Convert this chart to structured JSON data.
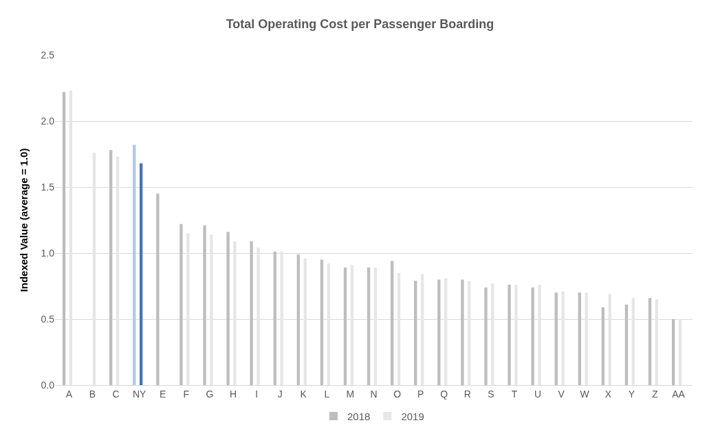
{
  "chart_data": {
    "type": "bar",
    "title": "Total Operating Cost per Passenger Boarding",
    "ylabel": "Indexed Value (average = 1.0)",
    "categories": [
      "A",
      "B",
      "C",
      "NY",
      "E",
      "F",
      "G",
      "H",
      "I",
      "J",
      "K",
      "L",
      "M",
      "N",
      "O",
      "P",
      "Q",
      "R",
      "S",
      "T",
      "U",
      "V",
      "W",
      "X",
      "Y",
      "Z",
      "AA"
    ],
    "series": [
      {
        "name": "2018",
        "color": "#bdbdbd",
        "colors": [
          "#bdbdbd",
          "#bdbdbd",
          "#bdbdbd",
          "#b4c7e7",
          "#bdbdbd",
          "#bdbdbd",
          "#bdbdbd",
          "#bdbdbd",
          "#bdbdbd",
          "#bdbdbd",
          "#bdbdbd",
          "#bdbdbd",
          "#bdbdbd",
          "#bdbdbd",
          "#bdbdbd",
          "#bdbdbd",
          "#bdbdbd",
          "#bdbdbd",
          "#bdbdbd",
          "#bdbdbd",
          "#bdbdbd",
          "#bdbdbd",
          "#bdbdbd",
          "#bdbdbd",
          "#bdbdbd",
          "#bdbdbd",
          "#bdbdbd"
        ],
        "values": [
          2.22,
          null,
          1.78,
          1.82,
          1.45,
          1.22,
          1.21,
          1.16,
          1.09,
          1.01,
          0.99,
          0.95,
          0.89,
          0.89,
          0.94,
          0.79,
          0.8,
          0.8,
          0.74,
          0.76,
          0.74,
          0.7,
          0.7,
          0.59,
          0.61,
          0.66,
          0.5
        ]
      },
      {
        "name": "2019",
        "color": "#e6e6e6",
        "colors": [
          "#e6e6e6",
          "#e6e6e6",
          "#e6e6e6",
          "#4472c4",
          "#e6e6e6",
          "#e6e6e6",
          "#e6e6e6",
          "#e6e6e6",
          "#e6e6e6",
          "#e6e6e6",
          "#e6e6e6",
          "#e6e6e6",
          "#e6e6e6",
          "#e6e6e6",
          "#e6e6e6",
          "#e6e6e6",
          "#e6e6e6",
          "#e6e6e6",
          "#e6e6e6",
          "#e6e6e6",
          "#e6e6e6",
          "#e6e6e6",
          "#e6e6e6",
          "#e6e6e6",
          "#e6e6e6",
          "#e6e6e6",
          "#e6e6e6"
        ],
        "values": [
          2.23,
          1.76,
          1.73,
          1.68,
          null,
          1.15,
          1.14,
          1.09,
          1.04,
          1.01,
          0.96,
          0.92,
          0.91,
          0.89,
          0.85,
          0.84,
          0.81,
          0.79,
          0.77,
          0.76,
          0.76,
          0.71,
          0.7,
          0.69,
          0.66,
          0.65,
          0.5
        ]
      }
    ],
    "ylim": [
      0,
      2.5
    ],
    "yticks": [
      {
        "value": 0,
        "label": "0.0"
      },
      {
        "value": 0.5,
        "label": "0.5"
      },
      {
        "value": 1,
        "label": "1.0"
      },
      {
        "value": 1.5,
        "label": "1.5"
      },
      {
        "value": 2,
        "label": "2.0"
      },
      {
        "value": 2.5,
        "label": "2.5"
      }
    ],
    "grid": "y",
    "legend": "bottom"
  }
}
